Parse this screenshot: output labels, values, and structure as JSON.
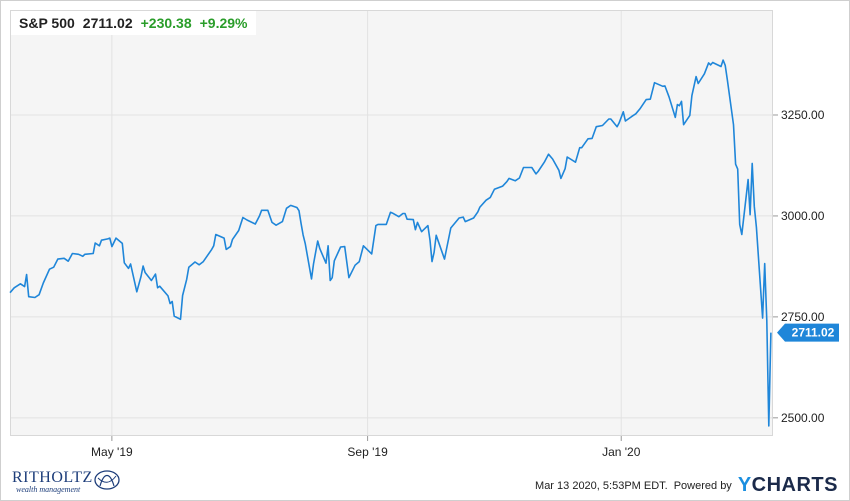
{
  "header": {
    "symbol": "S&P 500",
    "price": "2711.02",
    "change": "+230.38",
    "change_pct": "+9.29%"
  },
  "footer": {
    "timestamp": "Mar 13 2020, 5:53PM EDT.",
    "powered_by": "Powered by",
    "brand_y": "Y",
    "brand_rest": "CHARTS",
    "logo_name": "RITHOLTZ",
    "logo_sub": "wealth management"
  },
  "colors": {
    "line": "#1f86d9",
    "up": "#2a9d2a",
    "price_tag": "#1f86d9"
  },
  "chart_data": {
    "type": "line",
    "series": [
      {
        "values": [
          [
            "2019-03-13",
            2810
          ],
          [
            "2019-03-15",
            2822
          ],
          [
            "2019-03-18",
            2832
          ],
          [
            "2019-03-20",
            2825
          ],
          [
            "2019-03-21",
            2855
          ],
          [
            "2019-03-22",
            2800
          ],
          [
            "2019-03-25",
            2798
          ],
          [
            "2019-03-27",
            2805
          ],
          [
            "2019-03-29",
            2834
          ],
          [
            "2019-04-01",
            2868
          ],
          [
            "2019-04-03",
            2873
          ],
          [
            "2019-04-05",
            2893
          ],
          [
            "2019-04-08",
            2895
          ],
          [
            "2019-04-10",
            2888
          ],
          [
            "2019-04-12",
            2907
          ],
          [
            "2019-04-15",
            2905
          ],
          [
            "2019-04-17",
            2900
          ],
          [
            "2019-04-18",
            2905
          ],
          [
            "2019-04-22",
            2907
          ],
          [
            "2019-04-23",
            2933
          ],
          [
            "2019-04-25",
            2926
          ],
          [
            "2019-04-26",
            2940
          ],
          [
            "2019-04-29",
            2943
          ],
          [
            "2019-04-30",
            2945
          ],
          [
            "2019-05-01",
            2924
          ],
          [
            "2019-05-03",
            2945
          ],
          [
            "2019-05-06",
            2932
          ],
          [
            "2019-05-07",
            2884
          ],
          [
            "2019-05-09",
            2870
          ],
          [
            "2019-05-10",
            2881
          ],
          [
            "2019-05-13",
            2812
          ],
          [
            "2019-05-15",
            2850
          ],
          [
            "2019-05-16",
            2876
          ],
          [
            "2019-05-17",
            2860
          ],
          [
            "2019-05-20",
            2840
          ],
          [
            "2019-05-22",
            2856
          ],
          [
            "2019-05-23",
            2822
          ],
          [
            "2019-05-24",
            2826
          ],
          [
            "2019-05-28",
            2802
          ],
          [
            "2019-05-29",
            2783
          ],
          [
            "2019-05-30",
            2788
          ],
          [
            "2019-05-31",
            2752
          ],
          [
            "2019-06-03",
            2744
          ],
          [
            "2019-06-04",
            2803
          ],
          [
            "2019-06-06",
            2843
          ],
          [
            "2019-06-07",
            2873
          ],
          [
            "2019-06-10",
            2886
          ],
          [
            "2019-06-12",
            2879
          ],
          [
            "2019-06-14",
            2887
          ],
          [
            "2019-06-18",
            2917
          ],
          [
            "2019-06-19",
            2926
          ],
          [
            "2019-06-20",
            2954
          ],
          [
            "2019-06-24",
            2945
          ],
          [
            "2019-06-25",
            2917
          ],
          [
            "2019-06-27",
            2924
          ],
          [
            "2019-06-28",
            2942
          ],
          [
            "2019-07-01",
            2964
          ],
          [
            "2019-07-03",
            2996
          ],
          [
            "2019-07-05",
            2990
          ],
          [
            "2019-07-09",
            2980
          ],
          [
            "2019-07-11",
            3000
          ],
          [
            "2019-07-12",
            3014
          ],
          [
            "2019-07-15",
            3014
          ],
          [
            "2019-07-17",
            2984
          ],
          [
            "2019-07-19",
            2977
          ],
          [
            "2019-07-22",
            2986
          ],
          [
            "2019-07-24",
            3019
          ],
          [
            "2019-07-26",
            3026
          ],
          [
            "2019-07-29",
            3021
          ],
          [
            "2019-07-30",
            3013
          ],
          [
            "2019-07-31",
            2981
          ],
          [
            "2019-08-01",
            2953
          ],
          [
            "2019-08-02",
            2932
          ],
          [
            "2019-08-05",
            2844
          ],
          [
            "2019-08-06",
            2881
          ],
          [
            "2019-08-08",
            2938
          ],
          [
            "2019-08-09",
            2919
          ],
          [
            "2019-08-12",
            2883
          ],
          [
            "2019-08-13",
            2926
          ],
          [
            "2019-08-14",
            2840
          ],
          [
            "2019-08-15",
            2847
          ],
          [
            "2019-08-16",
            2889
          ],
          [
            "2019-08-19",
            2923
          ],
          [
            "2019-08-21",
            2924
          ],
          [
            "2019-08-23",
            2847
          ],
          [
            "2019-08-26",
            2878
          ],
          [
            "2019-08-28",
            2887
          ],
          [
            "2019-08-30",
            2926
          ],
          [
            "2019-09-03",
            2906
          ],
          [
            "2019-09-05",
            2976
          ],
          [
            "2019-09-06",
            2979
          ],
          [
            "2019-09-10",
            2979
          ],
          [
            "2019-09-12",
            3009
          ],
          [
            "2019-09-13",
            3007
          ],
          [
            "2019-09-16",
            2998
          ],
          [
            "2019-09-18",
            3006
          ],
          [
            "2019-09-19",
            3006
          ],
          [
            "2019-09-20",
            2992
          ],
          [
            "2019-09-23",
            2991
          ],
          [
            "2019-09-24",
            2966
          ],
          [
            "2019-09-25",
            2984
          ],
          [
            "2019-09-27",
            2961
          ],
          [
            "2019-09-30",
            2976
          ],
          [
            "2019-10-01",
            2940
          ],
          [
            "2019-10-02",
            2887
          ],
          [
            "2019-10-03",
            2910
          ],
          [
            "2019-10-04",
            2952
          ],
          [
            "2019-10-08",
            2893
          ],
          [
            "2019-10-09",
            2919
          ],
          [
            "2019-10-11",
            2970
          ],
          [
            "2019-10-15",
            2995
          ],
          [
            "2019-10-17",
            2997
          ],
          [
            "2019-10-18",
            2986
          ],
          [
            "2019-10-22",
            2995
          ],
          [
            "2019-10-24",
            3010
          ],
          [
            "2019-10-25",
            3022
          ],
          [
            "2019-10-28",
            3039
          ],
          [
            "2019-10-30",
            3046
          ],
          [
            "2019-11-01",
            3066
          ],
          [
            "2019-11-05",
            3074
          ],
          [
            "2019-11-07",
            3085
          ],
          [
            "2019-11-08",
            3093
          ],
          [
            "2019-11-11",
            3087
          ],
          [
            "2019-11-13",
            3094
          ],
          [
            "2019-11-15",
            3120
          ],
          [
            "2019-11-19",
            3120
          ],
          [
            "2019-11-21",
            3104
          ],
          [
            "2019-11-22",
            3110
          ],
          [
            "2019-11-25",
            3133
          ],
          [
            "2019-11-27",
            3153
          ],
          [
            "2019-11-29",
            3141
          ],
          [
            "2019-12-02",
            3113
          ],
          [
            "2019-12-03",
            3093
          ],
          [
            "2019-12-05",
            3117
          ],
          [
            "2019-12-06",
            3146
          ],
          [
            "2019-12-10",
            3133
          ],
          [
            "2019-12-12",
            3169
          ],
          [
            "2019-12-13",
            3169
          ],
          [
            "2019-12-16",
            3191
          ],
          [
            "2019-12-18",
            3192
          ],
          [
            "2019-12-20",
            3221
          ],
          [
            "2019-12-23",
            3224
          ],
          [
            "2019-12-26",
            3240
          ],
          [
            "2019-12-27",
            3240
          ],
          [
            "2019-12-30",
            3221
          ],
          [
            "2019-12-31",
            3231
          ],
          [
            "2020-01-02",
            3258
          ],
          [
            "2020-01-03",
            3235
          ],
          [
            "2020-01-06",
            3246
          ],
          [
            "2020-01-08",
            3253
          ],
          [
            "2020-01-10",
            3265
          ],
          [
            "2020-01-13",
            3288
          ],
          [
            "2020-01-15",
            3289
          ],
          [
            "2020-01-17",
            3330
          ],
          [
            "2020-01-21",
            3321
          ],
          [
            "2020-01-22",
            3322
          ],
          [
            "2020-01-24",
            3295
          ],
          [
            "2020-01-27",
            3244
          ],
          [
            "2020-01-28",
            3276
          ],
          [
            "2020-01-29",
            3273
          ],
          [
            "2020-01-30",
            3284
          ],
          [
            "2020-01-31",
            3226
          ],
          [
            "2020-02-03",
            3249
          ],
          [
            "2020-02-04",
            3298
          ],
          [
            "2020-02-06",
            3345
          ],
          [
            "2020-02-07",
            3328
          ],
          [
            "2020-02-10",
            3352
          ],
          [
            "2020-02-12",
            3379
          ],
          [
            "2020-02-13",
            3374
          ],
          [
            "2020-02-14",
            3380
          ],
          [
            "2020-02-18",
            3370
          ],
          [
            "2020-02-19",
            3386
          ],
          [
            "2020-02-20",
            3373
          ],
          [
            "2020-02-21",
            3338
          ],
          [
            "2020-02-24",
            3226
          ],
          [
            "2020-02-25",
            3128
          ],
          [
            "2020-02-26",
            3116
          ],
          [
            "2020-02-27",
            2979
          ],
          [
            "2020-02-28",
            2954
          ],
          [
            "2020-03-02",
            3090
          ],
          [
            "2020-03-03",
            3003
          ],
          [
            "2020-03-04",
            3130
          ],
          [
            "2020-03-05",
            3023
          ],
          [
            "2020-03-06",
            2972
          ],
          [
            "2020-03-09",
            2747
          ],
          [
            "2020-03-10",
            2882
          ],
          [
            "2020-03-11",
            2741
          ],
          [
            "2020-03-12",
            2480
          ],
          [
            "2020-03-13",
            2711
          ]
        ]
      }
    ],
    "x_ticks": [
      {
        "date": "2019-05-01",
        "label": "May '19"
      },
      {
        "date": "2019-09-01",
        "label": "Sep '19"
      },
      {
        "date": "2020-01-01",
        "label": "Jan '20"
      }
    ],
    "y_ticks": [
      {
        "value": 2500,
        "label": "2500.00"
      },
      {
        "value": 2750,
        "label": "2750.00"
      },
      {
        "value": 3000,
        "label": "3000.00"
      },
      {
        "value": 3250,
        "label": "3250.00"
      }
    ],
    "xlim": [
      "2019-03-13",
      "2020-03-13"
    ],
    "ylim": [
      2455,
      3510
    ],
    "last_value_label": "2711.02",
    "grid": true,
    "y_axis_position": "right"
  }
}
